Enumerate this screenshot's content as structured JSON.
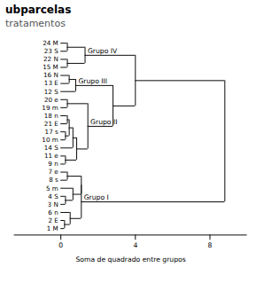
{
  "chart_data": {
    "type": "dendrogram",
    "title": "ubparcelas",
    "subtitle": "tratamentos",
    "xlabel": "Soma de quadrado entre grupos",
    "xlim": [
      -2.5,
      10
    ],
    "xticks": [
      0,
      4,
      8
    ],
    "categories": [
      "24 M",
      "23 S",
      "22 N",
      "15 M",
      "16 N",
      "13 E",
      "12 S",
      "20 e",
      "19 m",
      "18 n",
      "21 E",
      "17 s",
      "10 m",
      "14 S",
      "11 e",
      "9 n",
      "7 e",
      "8 s",
      "5 m",
      "4 S",
      "3 N",
      "6 n",
      "2 E",
      "1 M"
    ],
    "tree": {
      "height": 8.8,
      "children": [
        {
          "height": 4.0,
          "children": [
            {
              "height": 1.3,
              "label": "Grupo IV",
              "children": [
                {
                  "height": 0.35,
                  "children": [
                    "24 M",
                    "23 S"
                  ]
                },
                {
                  "height": 0.35,
                  "children": [
                    "22 N",
                    "15 M"
                  ]
                }
              ]
            },
            {
              "height": 2.8,
              "children": [
                {
                  "height": 0.8,
                  "label": "Grupo III",
                  "children": [
                    {
                      "height": 0.45,
                      "children": [
                        "16 N",
                        "13 E"
                      ]
                    },
                    "12 S"
                  ]
                },
                {
                  "height": 1.45,
                  "label": "Grupo II",
                  "children": [
                    {
                      "height": 0.35,
                      "children": [
                        "20 e",
                        "19 m"
                      ]
                    },
                    {
                      "height": 0.85,
                      "children": [
                        {
                          "height": 0.65,
                          "children": [
                            {
                              "height": 0.45,
                              "children": [
                                {
                                  "height": 0.35,
                                  "children": [
                                    "18 n",
                                    "21 E"
                                  ]
                                },
                                {
                                  "height": 0.25,
                                  "children": [
                                    "17 s",
                                    "10 m"
                                  ]
                                }
                              ]
                            },
                            "14 S"
                          ]
                        },
                        {
                          "height": 0.25,
                          "children": [
                            "11 e",
                            "9 n"
                          ]
                        }
                      ]
                    }
                  ]
                }
              ]
            }
          ]
        },
        {
          "height": 1.1,
          "label": "Grupo I",
          "children": [
            {
              "height": 1.1,
              "children": [
                {
                  "height": 0.35,
                  "children": [
                    "7 e",
                    "8 s"
                  ]
                },
                {
                  "height": 0.65,
                  "children": [
                    "5 m",
                    {
                      "height": 0.25,
                      "children": [
                        "4 S",
                        "3 N"
                      ]
                    }
                  ]
                }
              ]
            },
            {
              "height": 0.5,
              "children": [
                "6 n",
                {
                  "height": 0.2,
                  "children": [
                    "2 E",
                    "1 M"
                  ]
                }
              ]
            }
          ]
        }
      ]
    }
  }
}
